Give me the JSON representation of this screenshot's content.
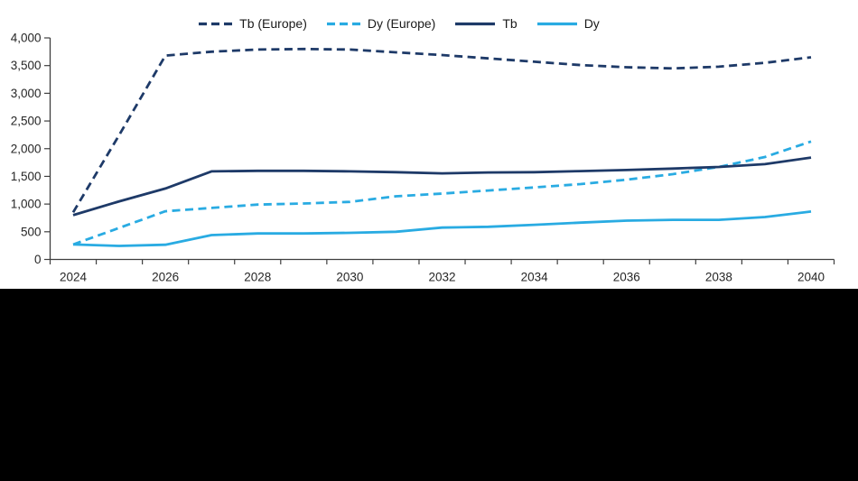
{
  "page": {
    "background": "#ffffff",
    "letterbox_color": "#000000"
  },
  "chart_data": {
    "type": "line",
    "title": "",
    "xlabel": "",
    "ylabel": "",
    "x": [
      2024,
      2025,
      2026,
      2027,
      2028,
      2029,
      2030,
      2031,
      2032,
      2033,
      2034,
      2035,
      2036,
      2037,
      2038,
      2039,
      2040
    ],
    "x_tick_labels": [
      "2024",
      "2026",
      "2028",
      "2030",
      "2032",
      "2034",
      "2036",
      "2038",
      "2040"
    ],
    "y_ticks": [
      0,
      500,
      1000,
      1500,
      2000,
      2500,
      3000,
      3500,
      4000
    ],
    "y_tick_labels": [
      "0",
      "500",
      "1,000",
      "1,500",
      "2,000",
      "2,500",
      "3,000",
      "3,500",
      "4,000"
    ],
    "ylim": [
      0,
      4000
    ],
    "grid": false,
    "legend_position": "top-center",
    "axis_color": "#3f3f3f",
    "label_color": "#262626",
    "series": [
      {
        "name": "Tb (Europe)",
        "line_style": "dashed",
        "color": "#1e3a68",
        "values": [
          850,
          2250,
          3680,
          3750,
          3790,
          3800,
          3790,
          3740,
          3690,
          3630,
          3570,
          3510,
          3470,
          3450,
          3480,
          3550,
          3650
        ]
      },
      {
        "name": "Dy (Europe)",
        "line_style": "dashed",
        "color": "#29abe2",
        "values": [
          270,
          570,
          870,
          930,
          990,
          1010,
          1040,
          1140,
          1190,
          1245,
          1300,
          1360,
          1440,
          1540,
          1670,
          1850,
          2130
        ]
      },
      {
        "name": "Tb",
        "line_style": "solid",
        "color": "#1e3a68",
        "values": [
          800,
          1050,
          1280,
          1590,
          1600,
          1600,
          1590,
          1575,
          1555,
          1570,
          1575,
          1595,
          1615,
          1640,
          1670,
          1720,
          1840
        ]
      },
      {
        "name": "Dy",
        "line_style": "solid",
        "color": "#29abe2",
        "values": [
          270,
          245,
          265,
          440,
          470,
          470,
          480,
          500,
          575,
          590,
          625,
          665,
          700,
          715,
          715,
          765,
          865
        ]
      }
    ]
  }
}
